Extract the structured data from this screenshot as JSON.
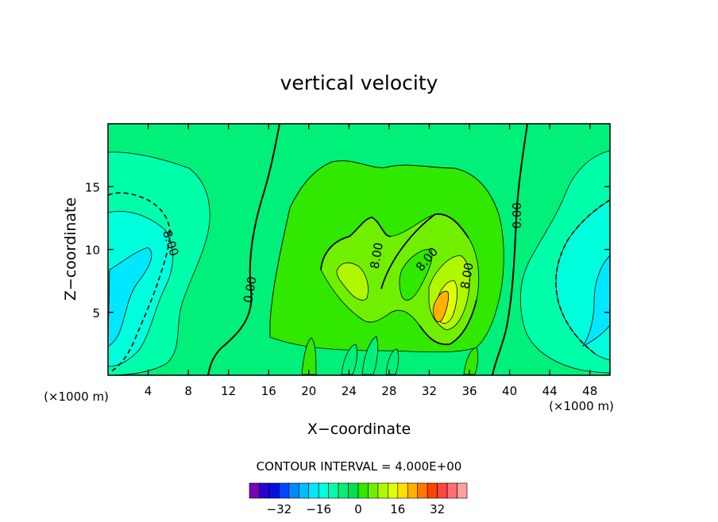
{
  "chart_data": {
    "type": "contour",
    "title": "vertical velocity",
    "xlabel": "X−coordinate",
    "ylabel": "Z−coordinate",
    "x_unit_label": "(×1000 m)",
    "z_unit_label": "(×1000 m)",
    "xlim": [
      0,
      50
    ],
    "ylim": [
      0,
      20
    ],
    "x_ticks": [
      4,
      8,
      12,
      16,
      20,
      24,
      28,
      32,
      36,
      40,
      44,
      48
    ],
    "y_ticks": [
      5,
      10,
      15
    ],
    "contour_labels": [
      {
        "text": "8.00",
        "x": 6.2,
        "z": 10.5,
        "angle": 72
      },
      {
        "text": "0.00",
        "x": 14.2,
        "z": 6.8,
        "angle": -80
      },
      {
        "text": "8.00",
        "x": 26.8,
        "z": 9.5,
        "angle": -80
      },
      {
        "text": "8.00",
        "x": 31.8,
        "z": 9.2,
        "angle": -50
      },
      {
        "text": "8.00",
        "x": 35.8,
        "z": 7.9,
        "angle": -80
      },
      {
        "text": "0.00",
        "x": 40.8,
        "z": 12.7,
        "angle": -90
      }
    ],
    "contour_interval_text": "CONTOUR INTERVAL = 4.000E+00",
    "colorbar": {
      "colors": [
        "#7a00b8",
        "#2a00d0",
        "#0010e0",
        "#0044ff",
        "#0088ff",
        "#00bbff",
        "#00e8ff",
        "#00ffdc",
        "#00ffaa",
        "#00f07a",
        "#00e050",
        "#30e800",
        "#70f000",
        "#b0f800",
        "#e0ff00",
        "#ffe000",
        "#ffb000",
        "#ff7800",
        "#ff4400",
        "#ff4444",
        "#ff7070",
        "#ffa0a0"
      ],
      "tick_labels": [
        "−32",
        "−16",
        "0",
        "16",
        "32"
      ],
      "tick_values": [
        -32,
        -16,
        0,
        16,
        32
      ],
      "range": [
        -44,
        44
      ]
    },
    "palette": {
      "w_neg8": "#00ffdc",
      "w_neg4": "#00ffaa",
      "w_0": "#00f07a",
      "w_4": "#30e800",
      "w_8": "#70f000",
      "w_12": "#b0f800",
      "w_16": "#e0ff00",
      "w_20": "#ffe000",
      "w_24": "#ffb000",
      "w_neg12": "#00e8ff"
    }
  }
}
